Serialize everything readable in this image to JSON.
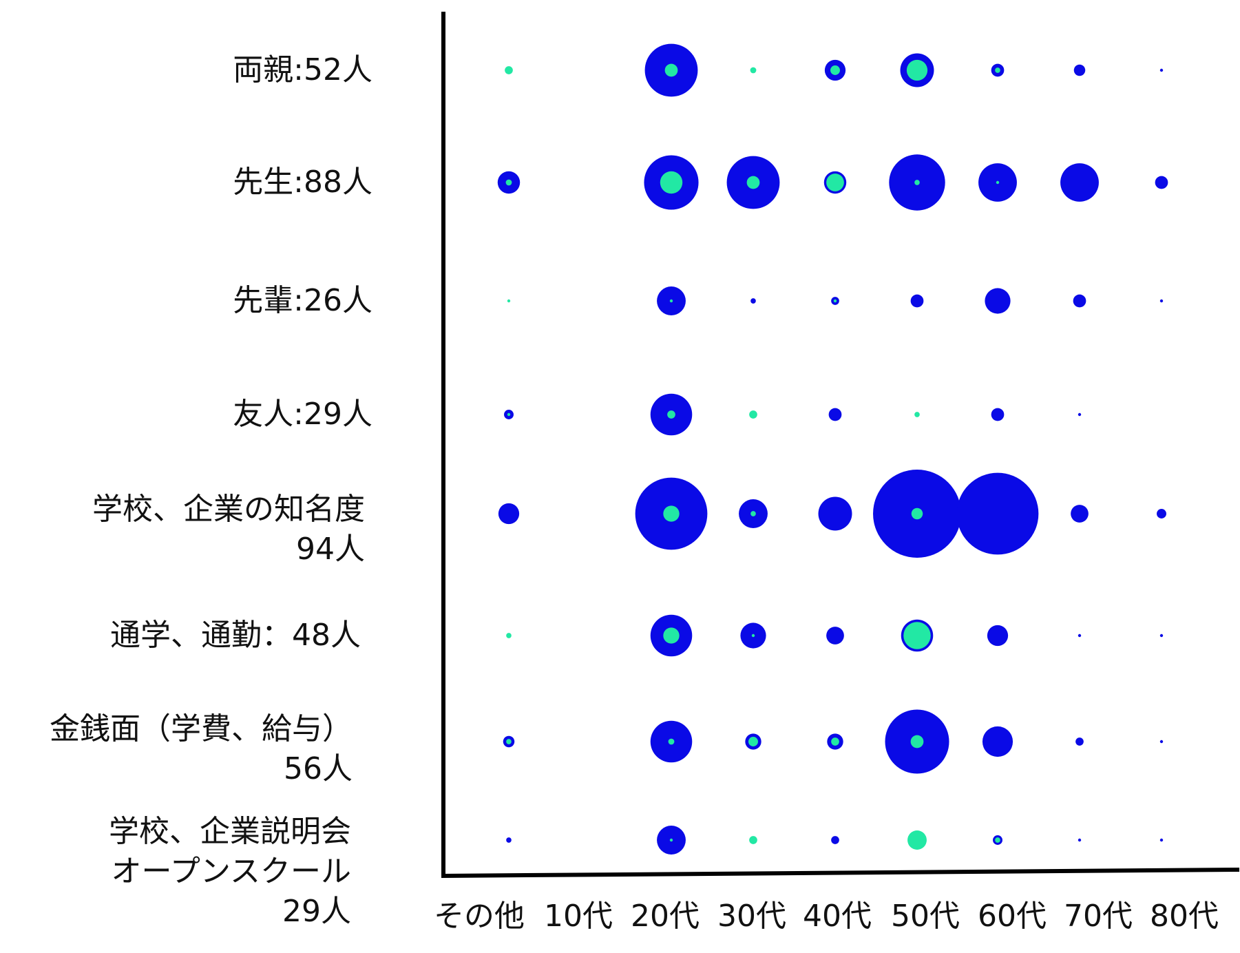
{
  "chart_data": {
    "type": "bubble-matrix",
    "categories": [
      "その他",
      "10代",
      "20代",
      "30代",
      "40代",
      "50代",
      "60代",
      "70代",
      "80代"
    ],
    "outer_color": "#0a0ae6",
    "inner_color": "#22e8a4",
    "series": [
      {
        "name": "両親:52人",
        "values": [
          null,
          null,
          30.3,
          null,
          4.7,
          12.3,
          1.8,
          1.4,
          0.1
        ],
        "inner_values": [
          0.7,
          null,
          1.8,
          0.4,
          1,
          4.7,
          0.3,
          null,
          null
        ]
      },
      {
        "name": "先生:88人",
        "values": [
          5.4,
          null,
          32.1,
          30.3,
          5.4,
          34,
          16,
          16,
          1.8
        ],
        "inner_values": [
          0.4,
          null,
          5.4,
          1.8,
          3.4,
          0.3,
          0.1,
          null,
          null
        ]
      },
      {
        "name": "先輩:26人",
        "values": [
          null,
          null,
          9,
          0.3,
          0.7,
          1.8,
          7.1,
          1.8,
          0.1
        ],
        "inner_values": [
          0.1,
          null,
          0.1,
          null,
          0.1,
          null,
          null,
          null,
          null
        ]
      },
      {
        "name": "友人:29人",
        "values": [
          1,
          null,
          18.8,
          null,
          1.8,
          null,
          1.8,
          0.1,
          null
        ],
        "inner_values": [
          0.1,
          null,
          0.7,
          0.7,
          null,
          0.3,
          null,
          null,
          null
        ]
      },
      {
        "name": "学校、企業の知名度\n94人",
        "values": [
          4.7,
          null,
          56.3,
          9,
          12.3,
          84,
          72.3,
          3.4,
          1
        ],
        "inner_values": [
          null,
          null,
          2.8,
          0.3,
          null,
          1.4,
          null,
          null,
          null
        ]
      },
      {
        "name": "通学、通勤：48人",
        "values": [
          null,
          null,
          18.8,
          7.1,
          3.4,
          11.1,
          4.7,
          0.1,
          0.1
        ],
        "inner_values": [
          0.3,
          null,
          2.8,
          0.1,
          null,
          8,
          null,
          null,
          null
        ]
      },
      {
        "name": "金銭面（学費、給与）\n56人",
        "values": [
          1.4,
          null,
          18.8,
          2.8,
          2.8,
          44.4,
          10,
          0.7,
          0.1
        ],
        "inner_values": [
          0.3,
          null,
          0.4,
          1,
          0.7,
          1.8,
          null,
          null,
          null
        ]
      },
      {
        "name": "学校、企業説明会\nオープンスクール\n29人",
        "values": [
          0.3,
          null,
          9,
          null,
          0.7,
          null,
          1,
          0.1,
          0.1
        ],
        "inner_values": [
          null,
          null,
          0.1,
          0.7,
          null,
          4,
          0.3,
          null,
          null
        ]
      }
    ]
  }
}
